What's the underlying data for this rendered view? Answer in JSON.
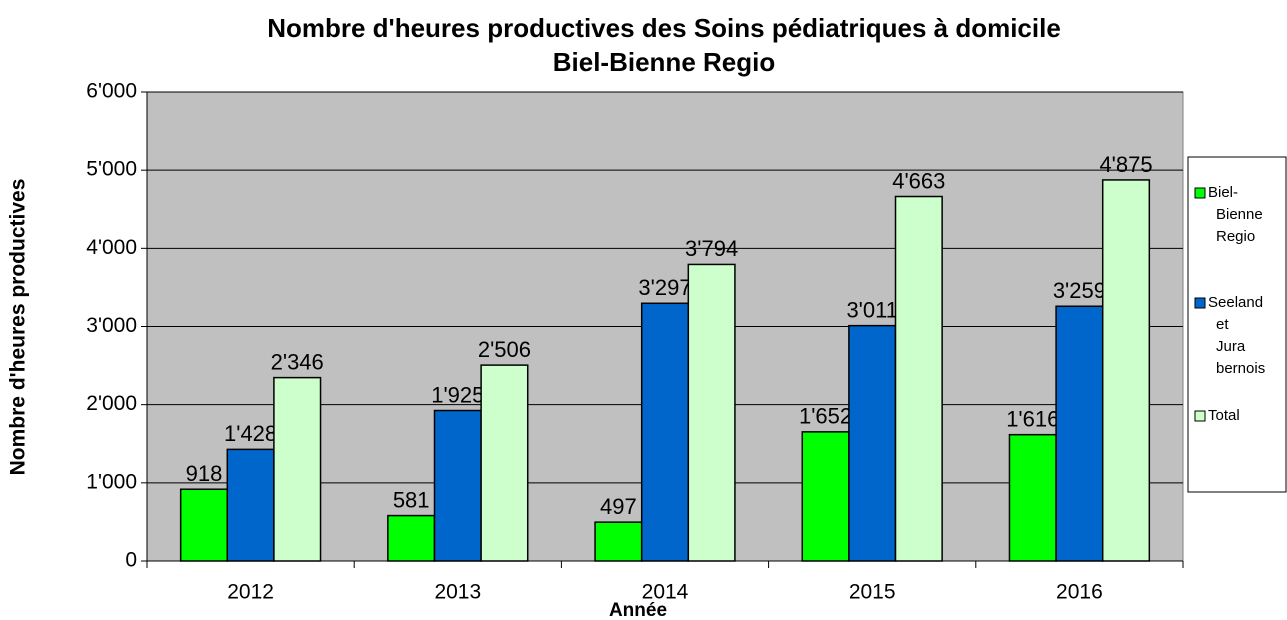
{
  "chart_data": {
    "type": "bar",
    "title": "Nombre d'heures productives des Soins pédiatriques à domicile",
    "subtitle": "Biel-Bienne Regio",
    "x_label": "Année",
    "y_label": "Nombre d'heures productives",
    "categories": [
      "2012",
      "2013",
      "2014",
      "2015",
      "2016"
    ],
    "series": [
      {
        "name": "Biel-Bienne Regio",
        "color": "#00ff00",
        "values": [
          918,
          581,
          497,
          1652,
          1616
        ],
        "value_labels": [
          "918",
          "581",
          "497",
          "1'652",
          "1'616"
        ]
      },
      {
        "name": "Seeland et Jura bernois",
        "color": "#0066cc",
        "values": [
          1428,
          1925,
          3297,
          3011,
          3259
        ],
        "value_labels": [
          "1'428",
          "1'925",
          "3'297",
          "3'011",
          "3'259"
        ]
      },
      {
        "name": "Total",
        "color": "#ccffcc",
        "values": [
          2346,
          2506,
          3794,
          4663,
          4875
        ],
        "value_labels": [
          "2'346",
          "2'506",
          "3'794",
          "4'663",
          "4'875"
        ]
      }
    ],
    "ylim": [
      0,
      6000
    ],
    "yticks": [
      0,
      {
        "value": 1000,
        "label": "1'000"
      },
      {
        "value": 2000,
        "label": "2'000"
      },
      {
        "value": 3000,
        "label": "3'000"
      },
      {
        "value": 4000,
        "label": "4'000"
      },
      {
        "value": 5000,
        "label": "5'000"
      },
      {
        "value": 6000,
        "label": "6'000"
      }
    ],
    "grid": true,
    "legend": "right"
  }
}
